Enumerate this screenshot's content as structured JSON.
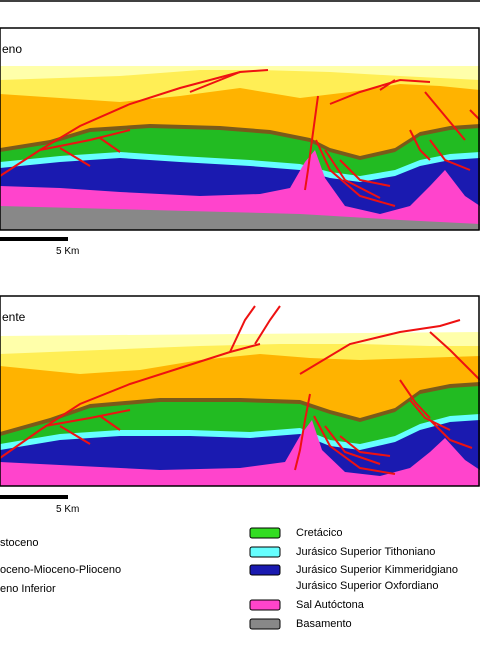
{
  "panels": [
    {
      "title": "eno",
      "scale_label": "5 Km"
    },
    {
      "title": "ente",
      "scale_label": "5 Km"
    }
  ],
  "legend_left": [
    {
      "label": "stoceno"
    },
    {
      "label": "oceno-Mioceno-Plioceno"
    },
    {
      "label": "eno Inferior"
    }
  ],
  "legend_right": [
    {
      "label": "Cretácico",
      "color": "#33dd22"
    },
    {
      "label": "Jurásico Superior Tithoniano",
      "color": "#66ffff"
    },
    {
      "label": "Jurásico Superior Kimmeridgiano",
      "label2": "Jurásico Superior Oxfordiano",
      "color": "#1a1ab0"
    },
    {
      "label": "Sal Autóctona",
      "color": "#ff44cc"
    },
    {
      "label": "Basamento",
      "color": "#888888"
    }
  ],
  "colors": {
    "upper_yellow": "#ffffaa",
    "yellow": "#ffee55",
    "orange": "#ffb300",
    "green": "#22bb22",
    "brown": "#7a5a1a",
    "cyan": "#66ffff",
    "blue": "#1a1ab0",
    "pink": "#ff44cc",
    "gray": "#888888",
    "fault": "#ee1111"
  }
}
